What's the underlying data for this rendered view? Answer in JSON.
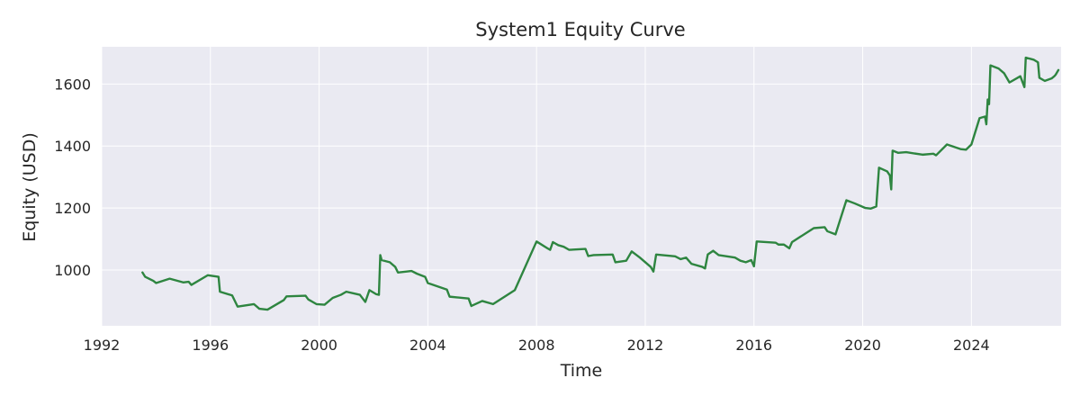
{
  "chart_data": {
    "type": "line",
    "title": "System1 Equity Curve",
    "xlabel": "Time",
    "ylabel": "Equity (USD)",
    "x_ticks": [
      "1992",
      "1996",
      "2000",
      "2004",
      "2008",
      "2012",
      "2016",
      "2020",
      "2024"
    ],
    "y_ticks": [
      "1000",
      "1200",
      "1400",
      "1600"
    ],
    "xlim": [
      1992.0,
      2027.3
    ],
    "ylim": [
      820,
      1720
    ],
    "grid": true,
    "background": "#eaeaf2",
    "grid_color": "#ffffff",
    "series": [
      {
        "color": "#2e8540",
        "points": [
          [
            1993.5,
            992
          ],
          [
            1993.6,
            978
          ],
          [
            1993.9,
            965
          ],
          [
            1994.0,
            958
          ],
          [
            1994.5,
            972
          ],
          [
            1995.0,
            960
          ],
          [
            1995.2,
            962
          ],
          [
            1995.3,
            952
          ],
          [
            1995.9,
            983
          ],
          [
            1996.3,
            978
          ],
          [
            1996.35,
            930
          ],
          [
            1996.8,
            918
          ],
          [
            1997.0,
            882
          ],
          [
            1997.6,
            890
          ],
          [
            1997.8,
            875
          ],
          [
            1998.1,
            872
          ],
          [
            1998.7,
            903
          ],
          [
            1998.8,
            915
          ],
          [
            1999.5,
            917
          ],
          [
            1999.6,
            905
          ],
          [
            1999.9,
            890
          ],
          [
            2000.2,
            888
          ],
          [
            2000.5,
            910
          ],
          [
            2000.8,
            920
          ],
          [
            2001.0,
            930
          ],
          [
            2001.5,
            920
          ],
          [
            2001.7,
            897
          ],
          [
            2001.85,
            935
          ],
          [
            2002.1,
            922
          ],
          [
            2002.2,
            920
          ],
          [
            2002.25,
            1048
          ],
          [
            2002.3,
            1032
          ],
          [
            2002.6,
            1025
          ],
          [
            2002.8,
            1010
          ],
          [
            2002.9,
            992
          ],
          [
            2003.4,
            997
          ],
          [
            2003.6,
            988
          ],
          [
            2003.9,
            978
          ],
          [
            2004.0,
            958
          ],
          [
            2004.7,
            937
          ],
          [
            2004.8,
            914
          ],
          [
            2005.5,
            908
          ],
          [
            2005.6,
            884
          ],
          [
            2006.0,
            900
          ],
          [
            2006.4,
            890
          ],
          [
            2007.2,
            935
          ],
          [
            2008.0,
            1092
          ],
          [
            2008.4,
            1070
          ],
          [
            2008.5,
            1065
          ],
          [
            2008.6,
            1090
          ],
          [
            2008.8,
            1080
          ],
          [
            2009.0,
            1075
          ],
          [
            2009.2,
            1065
          ],
          [
            2009.8,
            1068
          ],
          [
            2009.9,
            1045
          ],
          [
            2010.1,
            1048
          ],
          [
            2010.8,
            1050
          ],
          [
            2010.9,
            1025
          ],
          [
            2011.3,
            1030
          ],
          [
            2011.5,
            1060
          ],
          [
            2011.8,
            1040
          ],
          [
            2012.2,
            1010
          ],
          [
            2012.3,
            995
          ],
          [
            2012.4,
            1050
          ],
          [
            2013.1,
            1044
          ],
          [
            2013.3,
            1035
          ],
          [
            2013.5,
            1040
          ],
          [
            2013.7,
            1020
          ],
          [
            2014.1,
            1010
          ],
          [
            2014.2,
            1005
          ],
          [
            2014.3,
            1050
          ],
          [
            2014.5,
            1062
          ],
          [
            2014.7,
            1048
          ],
          [
            2015.3,
            1040
          ],
          [
            2015.5,
            1030
          ],
          [
            2015.7,
            1025
          ],
          [
            2015.9,
            1032
          ],
          [
            2016.0,
            1012
          ],
          [
            2016.1,
            1092
          ],
          [
            2016.8,
            1088
          ],
          [
            2016.9,
            1082
          ],
          [
            2017.1,
            1082
          ],
          [
            2017.3,
            1070
          ],
          [
            2017.4,
            1090
          ],
          [
            2018.2,
            1135
          ],
          [
            2018.6,
            1138
          ],
          [
            2018.7,
            1125
          ],
          [
            2019.0,
            1115
          ],
          [
            2019.4,
            1225
          ],
          [
            2019.7,
            1215
          ],
          [
            2020.1,
            1200
          ],
          [
            2020.3,
            1198
          ],
          [
            2020.5,
            1205
          ],
          [
            2020.6,
            1330
          ],
          [
            2020.9,
            1318
          ],
          [
            2021.0,
            1305
          ],
          [
            2021.05,
            1260
          ],
          [
            2021.1,
            1385
          ],
          [
            2021.3,
            1378
          ],
          [
            2021.6,
            1380
          ],
          [
            2022.2,
            1372
          ],
          [
            2022.6,
            1375
          ],
          [
            2022.7,
            1370
          ],
          [
            2023.1,
            1405
          ],
          [
            2023.6,
            1390
          ],
          [
            2023.8,
            1388
          ],
          [
            2024.0,
            1405
          ],
          [
            2024.3,
            1490
          ],
          [
            2024.5,
            1495
          ],
          [
            2024.55,
            1470
          ],
          [
            2024.6,
            1550
          ],
          [
            2024.65,
            1535
          ],
          [
            2024.7,
            1660
          ],
          [
            2025.0,
            1650
          ],
          [
            2025.2,
            1635
          ],
          [
            2025.4,
            1605
          ],
          [
            2025.7,
            1620
          ],
          [
            2025.8,
            1625
          ],
          [
            2025.95,
            1590
          ],
          [
            2026.0,
            1685
          ],
          [
            2026.3,
            1678
          ],
          [
            2026.45,
            1670
          ],
          [
            2026.5,
            1620
          ],
          [
            2026.7,
            1610
          ],
          [
            2026.95,
            1618
          ],
          [
            2027.05,
            1625
          ],
          [
            2027.1,
            1630
          ],
          [
            2027.2,
            1645
          ]
        ]
      }
    ]
  }
}
